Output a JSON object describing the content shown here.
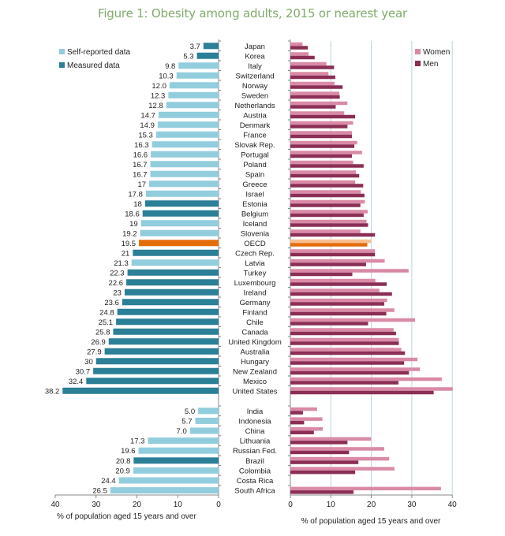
{
  "title": "Figure 1: Obesity among adults, 2015 or nearest year",
  "colors": {
    "self_reported": "#92cddd",
    "measured": "#2b7f96",
    "oecd": "#e46c0a",
    "oecd_women": "#f8c08f",
    "women": "#d98aa6",
    "men": "#8b2e55",
    "grid": "#b9d5e0",
    "title": "#7fab6a"
  },
  "chart_data": [
    {
      "type": "bar",
      "orientation": "horizontal",
      "title": "Obesity among adults, total (self-reported vs measured)",
      "xlabel": "% of population aged 15 years and over",
      "xlim": [
        40,
        0
      ],
      "x_ticks": [
        "40",
        "30",
        "20",
        "10",
        "0"
      ],
      "legend": {
        "placement": "top-left",
        "entries": [
          "Self-reported data",
          "Measured data"
        ]
      },
      "groups": [
        {
          "categories": [
            "Japan",
            "Korea",
            "Italy",
            "Switzerland",
            "Norway",
            "Sweden",
            "Netherlands",
            "Austria",
            "Denmark",
            "France",
            "Slovak Rep.",
            "Portugal",
            "Poland",
            "Spain",
            "Greece",
            "Israel",
            "Estonia",
            "Belgium",
            "Iceland",
            "Slovenia",
            "OECD",
            "Czech Rep.",
            "Latvia",
            "Turkey",
            "Luxembourg",
            "Ireland",
            "Germany",
            "Finland",
            "Chile",
            "Canada",
            "United Kingdom",
            "Australia",
            "Hungary",
            "New Zealand",
            "Mexico",
            "United States"
          ],
          "values": [
            3.7,
            5.3,
            9.8,
            10.3,
            12.0,
            12.3,
            12.8,
            14.7,
            14.9,
            15.3,
            16.3,
            16.6,
            16.7,
            16.7,
            17,
            17.8,
            18,
            18.6,
            19,
            19.2,
            19.5,
            21,
            21.3,
            22.3,
            22.6,
            23,
            23.6,
            24.8,
            25.1,
            25.8,
            26.9,
            27.9,
            30,
            30.7,
            32.4,
            38.2
          ],
          "labels": [
            "3.7",
            "5.3",
            "9.8",
            "10.3",
            "12.0",
            "12.3",
            "12.8",
            "14.7",
            "14.9",
            "15.3",
            "16.3",
            "16.6",
            "16.7",
            "16.7",
            "17",
            "17.8",
            "18",
            "18.6",
            "19",
            "19.2",
            "19.5",
            "21",
            "21.3",
            "22.3",
            "22.6",
            "23",
            "23.6",
            "24.8",
            "25.1",
            "25.8",
            "26.9",
            "27.9",
            "30",
            "30.7",
            "32.4",
            "38.2"
          ],
          "data_type": [
            "measured",
            "measured",
            "self",
            "self",
            "self",
            "self",
            "self",
            "self",
            "self",
            "self",
            "self",
            "self",
            "self",
            "self",
            "self",
            "self",
            "measured",
            "measured",
            "self",
            "self",
            "oecd",
            "measured",
            "self",
            "measured",
            "measured",
            "measured",
            "measured",
            "measured",
            "measured",
            "measured",
            "measured",
            "measured",
            "measured",
            "measured",
            "measured",
            "measured"
          ]
        },
        {
          "categories": [
            "India",
            "Indonesia",
            "China",
            "Lithuania",
            "Russian Fed.",
            "Brazil",
            "Colombia",
            "Costa Rica",
            "South Africa"
          ],
          "values": [
            5.0,
            5.7,
            7.0,
            17.3,
            19.6,
            20.8,
            20.9,
            24.4,
            26.5
          ],
          "labels": [
            "5.0",
            "5.7",
            "7.0",
            "17.3",
            "19.6",
            "20.8",
            "20.9",
            "24.4",
            "26.5"
          ],
          "data_type": [
            "self",
            "self",
            "self",
            "self",
            "self",
            "measured",
            "self",
            "self",
            "self"
          ]
        }
      ]
    },
    {
      "type": "bar",
      "orientation": "horizontal",
      "title": "Obesity among adults by sex",
      "xlabel": "% of population aged 15 years and over",
      "xlim": [
        0,
        40
      ],
      "x_ticks": [
        "0",
        "10",
        "20",
        "30",
        "40"
      ],
      "grid": true,
      "legend": {
        "placement": "top-right",
        "entries": [
          "Women",
          "Men"
        ]
      },
      "groups": [
        {
          "categories": [
            "Japan",
            "Korea",
            "Italy",
            "Switzerland",
            "Norway",
            "Sweden",
            "Netherlands",
            "Austria",
            "Denmark",
            "France",
            "Slovak Rep.",
            "Portugal",
            "Poland",
            "Spain",
            "Greece",
            "Israel",
            "Estonia",
            "Belgium",
            "Iceland",
            "Slovenia",
            "OECD",
            "Czech Rep.",
            "Latvia",
            "Turkey",
            "Luxembourg",
            "Ireland",
            "Germany",
            "Finland",
            "Chile",
            "Canada",
            "United Kingdom",
            "Australia",
            "Hungary",
            "New Zealand",
            "Mexico",
            "United States"
          ],
          "series": [
            {
              "name": "Women",
              "values": [
                3.0,
                4.5,
                8.9,
                9.4,
                10.9,
                12.1,
                14.1,
                13.3,
                15.5,
                15.2,
                16.5,
                17.7,
                15.5,
                16.2,
                16.0,
                17.4,
                18.4,
                19.1,
                18.8,
                17.3,
                19.9,
                20.9,
                23.3,
                29.2,
                21.0,
                22.0,
                23.9,
                25.7,
                30.8,
                25.5,
                26.8,
                27.4,
                31.4,
                32.0,
                37.4,
                40.1
              ]
            },
            {
              "name": "Men",
              "values": [
                4.3,
                6.0,
                10.8,
                11.1,
                12.9,
                12.2,
                11.2,
                16.0,
                14.1,
                15.2,
                15.8,
                15.2,
                18.1,
                17.0,
                18.0,
                18.3,
                17.3,
                18.1,
                19.2,
                20.9,
                19.0,
                20.9,
                18.7,
                15.3,
                23.8,
                25.1,
                23.2,
                23.7,
                19.2,
                26.1,
                26.8,
                28.3,
                28.1,
                29.3,
                26.7,
                35.4
              ]
            }
          ]
        },
        {
          "categories": [
            "India",
            "Indonesia",
            "China",
            "Lithuania",
            "Russian Fed.",
            "Brazil",
            "Colombia",
            "Costa Rica",
            "South Africa"
          ],
          "series": [
            {
              "name": "Women",
              "values": [
                6.6,
                7.9,
                8.0,
                19.9,
                23.2,
                24.4,
                25.7,
                null,
                37.2
              ]
            },
            {
              "name": "Men",
              "values": [
                3.1,
                3.4,
                5.8,
                14.1,
                14.5,
                16.8,
                16.0,
                null,
                15.6
              ]
            }
          ]
        }
      ]
    }
  ]
}
